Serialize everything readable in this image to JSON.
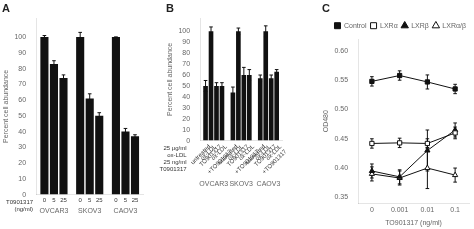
{
  "chart_data": [
    {
      "type": "bar",
      "title": "A",
      "categories": [
        "OVCAR3",
        "SKOV3",
        "CAOV3"
      ],
      "series": [
        {
          "name": "0",
          "values": [
            100,
            100,
            100
          ],
          "errors": [
            1,
            3,
            0
          ]
        },
        {
          "name": "5",
          "values": [
            83,
            61,
            40
          ],
          "errors": [
            2,
            3,
            2
          ]
        },
        {
          "name": "25",
          "values": [
            74,
            50,
            37
          ],
          "errors": [
            2,
            2,
            1
          ]
        }
      ],
      "color": "#111111",
      "ylabel": "Percent cell abundance",
      "ylim": [
        0,
        112
      ],
      "yticks": [
        0,
        10,
        20,
        30,
        40,
        50,
        60,
        70,
        80,
        90,
        100
      ],
      "grid": false,
      "annotations": [
        "T0901317",
        "(ng/ml)"
      ]
    },
    {
      "type": "bar",
      "title": "B",
      "categories": [
        "OVCAR3",
        "SKOV3",
        "CAOV3"
      ],
      "series": [
        {
          "name": "untreated",
          "values": [
            50,
            44,
            57
          ],
          "errors": [
            5,
            5,
            3
          ]
        },
        {
          "name": "ox-LDL",
          "values": [
            100,
            100,
            100
          ],
          "errors": [
            4,
            3,
            5
          ]
        },
        {
          "name": "TO901317",
          "values": [
            50,
            60,
            57
          ],
          "errors": [
            3,
            7,
            3
          ]
        },
        {
          "name": "ox-LDL\n+TO901317",
          "values": [
            50,
            60,
            63
          ],
          "errors": [
            3,
            5,
            2
          ]
        }
      ],
      "color": "#111111",
      "ylabel": "Percent cell abundance",
      "ylim": [
        0,
        112
      ],
      "yticks": [
        0,
        10,
        20,
        30,
        40,
        50,
        60,
        70,
        80,
        90,
        100
      ],
      "grid": false,
      "annotations": [
        "25 μg/ml",
        "ox-LDL",
        "25 ng/ml",
        "T0901317"
      ]
    },
    {
      "type": "line",
      "title": "C",
      "categories": [
        "0",
        "0.001",
        "0.01",
        "0.1"
      ],
      "series": [
        {
          "name": "Control",
          "values": [
            0.548,
            0.558,
            0.547,
            0.535
          ],
          "errors": [
            0.008,
            0.008,
            0.012,
            0.008
          ],
          "marker": "square"
        },
        {
          "name": "LXRα",
          "values": [
            0.442,
            0.443,
            0.442,
            0.46
          ],
          "errors": [
            0.008,
            0.008,
            0.008,
            0.01
          ],
          "marker": "square-open"
        },
        {
          "name": "LXRβ",
          "values": [
            0.395,
            0.385,
            0.43,
            0.465
          ],
          "errors": [
            0.012,
            0.012,
            0.035,
            0.012
          ],
          "marker": "triangle"
        },
        {
          "name": "LXRα/β",
          "values": [
            0.39,
            0.383,
            0.4,
            0.388
          ],
          "errors": [
            0.012,
            0.012,
            0.035,
            0.012
          ],
          "marker": "triangle-open"
        }
      ],
      "color": "#111111",
      "xlabel": "TO901317 (ng/ml)",
      "ylabel": "OD480",
      "ylim": [
        0.34,
        0.62
      ],
      "yticks": [
        0.35,
        {
          "value": 0.4,
          "label": "0.40"
        },
        0.45,
        {
          "value": 0.5,
          "label": "0.50"
        },
        0.55,
        {
          "value": 0.6,
          "label": "0.60"
        }
      ],
      "grid": false,
      "legend": "upper right"
    }
  ]
}
